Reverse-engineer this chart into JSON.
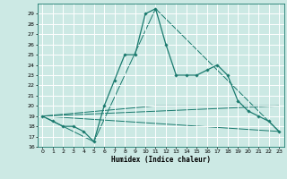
{
  "xlabel": "Humidex (Indice chaleur)",
  "xlim": [
    -0.5,
    23.5
  ],
  "ylim": [
    16,
    30
  ],
  "yticks": [
    16,
    17,
    18,
    19,
    20,
    21,
    22,
    23,
    24,
    25,
    26,
    27,
    28,
    29
  ],
  "xticks": [
    0,
    1,
    2,
    3,
    4,
    5,
    6,
    7,
    8,
    9,
    10,
    11,
    12,
    13,
    14,
    15,
    16,
    17,
    18,
    19,
    20,
    21,
    22,
    23
  ],
  "bg_color": "#cce9e4",
  "grid_color": "#ffffff",
  "line_color": "#1a7a6e",
  "series_main": {
    "x": [
      0,
      1,
      2,
      3,
      4,
      5,
      6,
      7,
      8,
      9,
      10,
      11,
      12,
      13,
      14,
      15,
      16,
      17,
      18,
      19,
      20,
      21,
      22,
      23
    ],
    "y": [
      19,
      18.5,
      18,
      18,
      17.5,
      16.5,
      20,
      22.5,
      25,
      25,
      29,
      29.5,
      26,
      23,
      23,
      23,
      23.5,
      24,
      23,
      20.5,
      19.5,
      19,
      18.5,
      17.5
    ]
  },
  "series_extra": [
    {
      "x": [
        0,
        5,
        11,
        23
      ],
      "y": [
        19,
        16.5,
        29.5,
        17.5
      ]
    },
    {
      "x": [
        0,
        23
      ],
      "y": [
        19,
        17.5
      ]
    },
    {
      "x": [
        0,
        11,
        23
      ],
      "y": [
        19,
        20,
        20
      ]
    },
    {
      "x": [
        0,
        23
      ],
      "y": [
        19,
        20
      ]
    }
  ]
}
